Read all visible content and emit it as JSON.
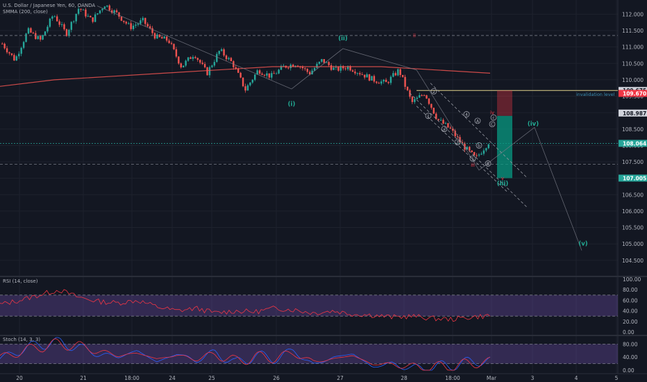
{
  "header": {
    "symbol_title": "U.S. Dollar / Japanese Yen, 60, OANDA",
    "indicator_label": "SMMA (200, close)"
  },
  "chart_data": [
    {
      "type": "candlestick",
      "title": "U.S. Dollar / Japanese Yen, 60, OANDA",
      "ylim": [
        104.2,
        112.6
      ],
      "y_ticks": [
        112.0,
        111.5,
        111.0,
        110.5,
        110.0,
        109.5,
        109.0,
        108.5,
        108.0,
        107.5,
        107.0,
        106.5,
        106.0,
        105.5,
        105.0,
        104.5
      ],
      "y_tick_labels": [
        "112.000",
        "111.500",
        "111.000",
        "110.500",
        "110.000",
        "109.500",
        "109.000",
        "108.500",
        "108.000",
        "107.500",
        "107.000",
        "106.500",
        "106.000",
        "105.500",
        "105.000",
        "104.500"
      ],
      "x_labels": [
        "20",
        "21",
        "18:00",
        "24",
        "25",
        "26",
        "27",
        "28",
        "18:00",
        "Mar",
        "3",
        "4",
        "5"
      ],
      "price_flags": [
        {
          "value": 109.675,
          "label": "109.675",
          "color": "#d1d4dc"
        },
        {
          "value": 109.67,
          "label": "109.670",
          "color": "#f23645"
        },
        {
          "value": 108.987,
          "label": "108.987",
          "color": "#d1d4dc"
        },
        {
          "value": 108.064,
          "label": "108.064",
          "color": "#26a69a"
        },
        {
          "value": 107.005,
          "label": "107.005",
          "color": "#26a69a"
        }
      ],
      "annotations": {
        "invalidation_text": "invalidation level",
        "waves": [
          "(i)",
          "(ii)",
          "(iii)",
          "(iv)",
          "(v)"
        ],
        "sub_waves": [
          "ii",
          "iii",
          "iv",
          "v"
        ],
        "micro_waves": [
          "1",
          "2",
          "3",
          "4",
          "5",
          "A",
          "B",
          "C",
          "a",
          "b",
          "c"
        ]
      },
      "series": [
        {
          "name": "USD/JPY",
          "ohlc_path": [
            111.1,
            110.6,
            111.5,
            111.2,
            112.0,
            111.4,
            112.2,
            111.8,
            112.3,
            112.0,
            111.6,
            111.8,
            111.3,
            111.2,
            110.4,
            110.8,
            110.2,
            110.9,
            110.5,
            109.7,
            110.3,
            110.1,
            110.4,
            110.5,
            110.2,
            110.6,
            110.3,
            110.4,
            110.2,
            110.0,
            109.9,
            110.3,
            109.3,
            109.6,
            108.8,
            108.5,
            108.0,
            107.6,
            108.1
          ]
        },
        {
          "name": "SMMA (200, close)",
          "values": [
            109.8,
            110.0,
            110.1,
            110.2,
            110.3,
            110.4,
            110.4,
            110.4,
            110.3,
            110.2
          ]
        }
      ]
    },
    {
      "type": "line",
      "title": "RSI (14, close)",
      "ylim": [
        0,
        100
      ],
      "y_ticks": [
        100,
        80,
        60,
        40,
        20,
        0
      ],
      "y_tick_labels": [
        "100.00",
        "80.00",
        "60.00",
        "40.00",
        "20.00",
        "0.00"
      ],
      "bands": [
        30,
        70
      ],
      "series": [
        {
          "name": "RSI",
          "values": [
            52,
            60,
            70,
            80,
            66,
            58,
            55,
            60,
            48,
            40,
            45,
            36,
            40,
            38,
            45,
            42,
            36,
            40,
            34,
            32,
            28,
            30,
            26,
            24,
            28,
            31
          ]
        }
      ]
    },
    {
      "type": "line",
      "title": "Stoch (14, 3, 3)",
      "ylim": [
        0,
        100
      ],
      "y_ticks": [
        80,
        40,
        0
      ],
      "y_tick_labels": [
        "80.00",
        "40.00",
        "0.00"
      ],
      "bands": [
        20,
        80
      ],
      "series": [
        {
          "name": "%K",
          "values": [
            35,
            60,
            80,
            85,
            70,
            50,
            40,
            60,
            25,
            50,
            30,
            55,
            20,
            45,
            35,
            60,
            15,
            40,
            50,
            10,
            20,
            5,
            8,
            15,
            25,
            30
          ]
        },
        {
          "name": "%D",
          "values": [
            40,
            55,
            72,
            80,
            75,
            58,
            45,
            52,
            35,
            45,
            35,
            48,
            28,
            40,
            38,
            52,
            25,
            35,
            45,
            18,
            18,
            10,
            8,
            12,
            20,
            27
          ]
        }
      ]
    }
  ]
}
